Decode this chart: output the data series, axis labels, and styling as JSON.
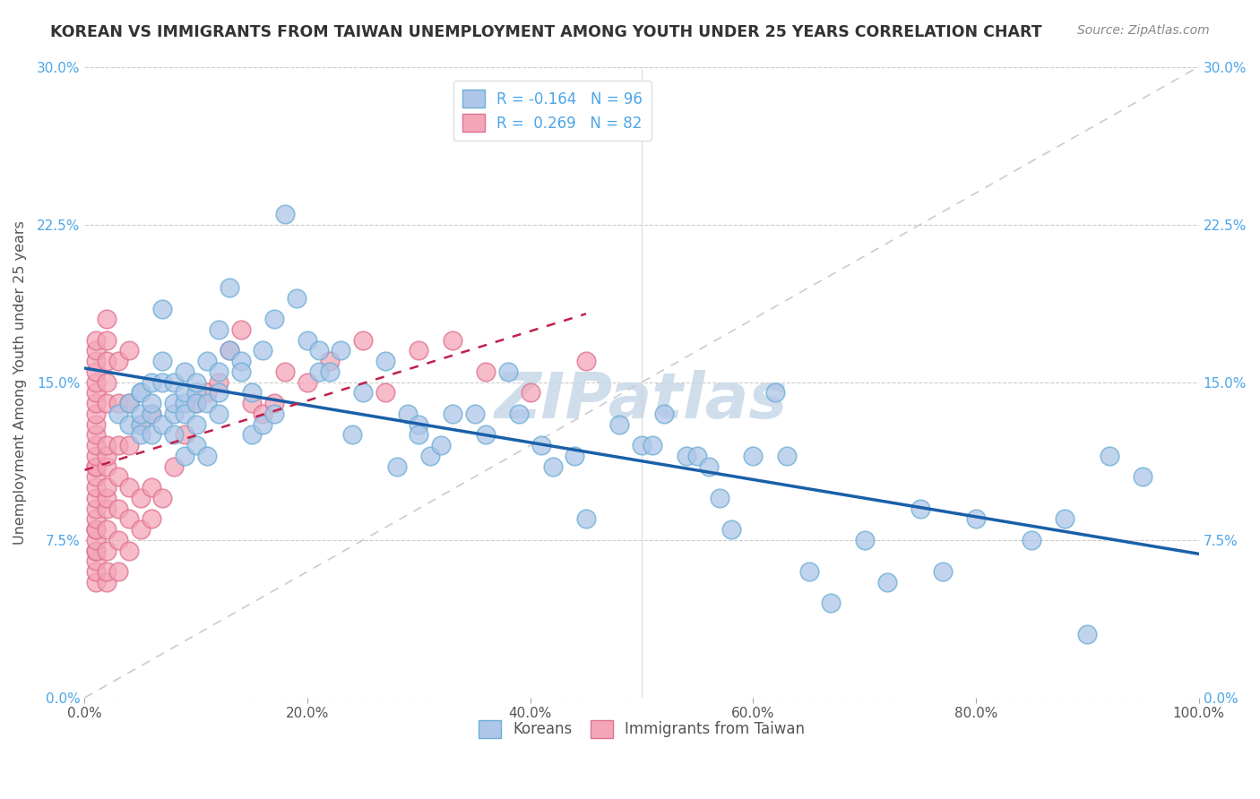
{
  "title": "KOREAN VS IMMIGRANTS FROM TAIWAN UNEMPLOYMENT AMONG YOUTH UNDER 25 YEARS CORRELATION CHART",
  "source": "Source: ZipAtlas.com",
  "ylabel": "Unemployment Among Youth under 25 years",
  "xlabel_ticks": [
    "0.0%",
    "20.0%",
    "40.0%",
    "60.0%",
    "80.0%",
    "100.0%"
  ],
  "xlabel_vals": [
    0,
    20,
    40,
    60,
    80,
    100
  ],
  "ylabel_ticks": [
    "0.0%",
    "7.5%",
    "15.0%",
    "22.5%",
    "30.0%"
  ],
  "ylabel_vals": [
    0,
    7.5,
    15.0,
    22.5,
    30.0
  ],
  "xlim": [
    0,
    100
  ],
  "ylim": [
    0,
    30
  ],
  "legend1_label": "R = -0.164   N = 96",
  "legend2_label": "R =  0.269   N = 82",
  "legend1_color": "#aec6e8",
  "legend2_color": "#f4a6b8",
  "series1_color": "#6baed6",
  "series2_color": "#e07090",
  "trendline1_color": "#1a5fa8",
  "trendline2_color": "#c0204a",
  "diagonal_color": "#cccccc",
  "watermark": "ZIPatlas",
  "watermark_color": "#c8d8e8",
  "koreans_x": [
    3,
    4,
    4,
    5,
    5,
    5,
    5,
    5,
    6,
    6,
    6,
    6,
    7,
    7,
    7,
    7,
    8,
    8,
    8,
    8,
    9,
    9,
    9,
    9,
    9,
    10,
    10,
    10,
    10,
    10,
    11,
    11,
    11,
    12,
    12,
    12,
    12,
    13,
    13,
    14,
    14,
    15,
    15,
    16,
    16,
    17,
    17,
    18,
    19,
    20,
    21,
    21,
    22,
    23,
    24,
    25,
    27,
    28,
    29,
    30,
    30,
    31,
    32,
    33,
    35,
    36,
    38,
    39,
    41,
    42,
    44,
    45,
    48,
    50,
    51,
    52,
    54,
    55,
    56,
    57,
    58,
    60,
    62,
    63,
    65,
    67,
    70,
    72,
    75,
    77,
    80,
    85,
    88,
    90,
    92,
    95
  ],
  "koreans_y": [
    13.5,
    14.0,
    13.0,
    14.5,
    13.0,
    14.5,
    12.5,
    13.5,
    12.5,
    15.0,
    13.5,
    14.0,
    16.0,
    18.5,
    15.0,
    13.0,
    13.5,
    12.5,
    15.0,
    14.0,
    14.0,
    14.5,
    13.5,
    11.5,
    15.5,
    13.0,
    12.0,
    14.5,
    14.0,
    15.0,
    14.0,
    11.5,
    16.0,
    13.5,
    14.5,
    17.5,
    15.5,
    19.5,
    16.5,
    16.0,
    15.5,
    14.5,
    12.5,
    13.0,
    16.5,
    13.5,
    18.0,
    23.0,
    19.0,
    17.0,
    15.5,
    16.5,
    15.5,
    16.5,
    12.5,
    14.5,
    16.0,
    11.0,
    13.5,
    13.0,
    12.5,
    11.5,
    12.0,
    13.5,
    13.5,
    12.5,
    15.5,
    13.5,
    12.0,
    11.0,
    11.5,
    8.5,
    13.0,
    12.0,
    12.0,
    13.5,
    11.5,
    11.5,
    11.0,
    9.5,
    8.0,
    11.5,
    14.5,
    11.5,
    6.0,
    4.5,
    7.5,
    5.5,
    9.0,
    6.0,
    8.5,
    7.5,
    8.5,
    3.0,
    11.5,
    10.5
  ],
  "taiwan_x": [
    1,
    1,
    1,
    1,
    1,
    1,
    1,
    1,
    1,
    1,
    1,
    1,
    1,
    1,
    1,
    1,
    1,
    1,
    1,
    1,
    1,
    1,
    1,
    1,
    1,
    1,
    1,
    2,
    2,
    2,
    2,
    2,
    2,
    2,
    2,
    2,
    2,
    2,
    2,
    2,
    2,
    2,
    3,
    3,
    3,
    3,
    3,
    3,
    3,
    4,
    4,
    4,
    4,
    4,
    4,
    5,
    5,
    5,
    6,
    6,
    6,
    7,
    8,
    9,
    10,
    11,
    12,
    13,
    14,
    15,
    16,
    17,
    18,
    20,
    22,
    25,
    27,
    30,
    33,
    36,
    40,
    45
  ],
  "taiwan_y": [
    5.5,
    6.0,
    6.5,
    7.0,
    7.0,
    7.5,
    8.0,
    8.0,
    8.5,
    9.0,
    9.5,
    10.0,
    10.5,
    11.0,
    11.0,
    11.5,
    12.0,
    12.5,
    13.0,
    13.5,
    14.0,
    14.5,
    15.0,
    15.5,
    16.0,
    16.5,
    17.0,
    5.5,
    6.0,
    7.0,
    8.0,
    9.0,
    9.5,
    10.0,
    11.0,
    11.5,
    12.0,
    14.0,
    15.0,
    16.0,
    17.0,
    18.0,
    6.0,
    7.5,
    9.0,
    10.5,
    12.0,
    14.0,
    16.0,
    7.0,
    8.5,
    10.0,
    12.0,
    14.0,
    16.5,
    8.0,
    9.5,
    13.0,
    8.5,
    10.0,
    13.5,
    9.5,
    11.0,
    12.5,
    14.0,
    14.5,
    15.0,
    16.5,
    17.5,
    14.0,
    13.5,
    14.0,
    15.5,
    15.0,
    16.0,
    17.0,
    14.5,
    16.5,
    17.0,
    15.5,
    14.5,
    16.0
  ]
}
